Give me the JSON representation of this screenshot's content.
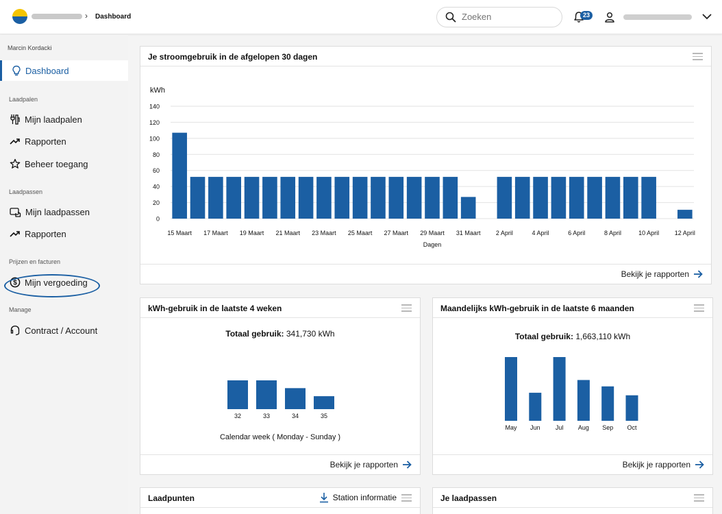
{
  "topbar": {
    "breadcrumb_current": "Dashboard",
    "breadcrumb_separator": "›",
    "search_placeholder": "Zoeken",
    "notification_count": "23"
  },
  "sidebar": {
    "user_name": "Marcin Kordacki",
    "dashboard": "Dashboard",
    "section_laadpalen": "Laadpalen",
    "mijn_laadpalen": "Mijn laadpalen",
    "rapporten_1": "Rapporten",
    "beheer_toegang": "Beheer toegang",
    "section_laadpassen": "Laadpassen",
    "mijn_laadpassen": "Mijn laadpassen",
    "rapporten_2": "Rapporten",
    "section_prijzen": "Prijzen en facturen",
    "mijn_vergoeding": "Mijn vergoeding",
    "section_manage": "Manage",
    "contract_account": "Contract /  Account"
  },
  "card_30days": {
    "title": "Je stroomgebruik in de afgelopen 30 dagen",
    "footer_link": "Bekijk je rapporten"
  },
  "card_4weeks": {
    "title": "kWh-gebruik in de laatste 4 weken",
    "total_label": "Totaal gebruik:",
    "total_value": "341,730 kWh",
    "footer_link": "Bekijk je rapporten"
  },
  "card_6months": {
    "title": "Maandelijks kWh-gebruik in de laatste 6 maanden",
    "total_label": "Totaal gebruik:",
    "total_value": "1,663,110 kWh",
    "footer_link": "Bekijk je rapporten"
  },
  "card_laadpunten": {
    "title": "Laadpunten",
    "station_info": "Station informatie"
  },
  "card_laadpassen": {
    "title": "Je laadpassen"
  },
  "chart_data": [
    {
      "type": "bar",
      "title": "",
      "ylabel": "kWh",
      "xlabel": "Dagen",
      "ylim": [
        0,
        140
      ],
      "yticks": [
        0,
        20,
        40,
        60,
        80,
        100,
        120,
        140
      ],
      "color": "#1b5fa3",
      "categories": [
        "15 Maart",
        "16 Maart",
        "17 Maart",
        "18 Maart",
        "19 Maart",
        "20 Maart",
        "21 Maart",
        "22 Maart",
        "23 Maart",
        "24 Maart",
        "25 Maart",
        "26 Maart",
        "27 Maart",
        "28 Maart",
        "29 Maart",
        "30 Maart",
        "31 Maart",
        "1 April",
        "2 April",
        "3 April",
        "4 April",
        "5 April",
        "6 April",
        "7 April",
        "8 April",
        "9 April",
        "10 April",
        "11 April",
        "12 April"
      ],
      "tick_labels": [
        "15 Maart",
        "17 Maart",
        "19 Maart",
        "21 Maart",
        "23 Maart",
        "25 Maart",
        "27 Maart",
        "29 Maart",
        "31 Maart",
        "2 April",
        "4 April",
        "6 April",
        "8 April",
        "10 April",
        "12 April"
      ],
      "values": [
        107,
        52,
        52,
        52,
        52,
        52,
        52,
        52,
        52,
        52,
        52,
        52,
        52,
        52,
        52,
        52,
        27,
        0,
        52,
        52,
        52,
        52,
        52,
        52,
        52,
        52,
        52,
        0,
        11
      ]
    },
    {
      "type": "bar",
      "title": "",
      "xlabel": "Calendar week ( Monday - Sunday )",
      "color": "#1b5fa3",
      "categories": [
        "32",
        "33",
        "34",
        "35"
      ],
      "values": [
        100,
        100,
        73,
        45
      ]
    },
    {
      "type": "bar",
      "title": "",
      "xlabel": "",
      "color": "#1b5fa3",
      "categories": [
        "May",
        "Jun",
        "Jul",
        "Aug",
        "Sep",
        "Oct"
      ],
      "values": [
        100,
        44,
        100,
        64,
        54,
        40
      ]
    }
  ]
}
